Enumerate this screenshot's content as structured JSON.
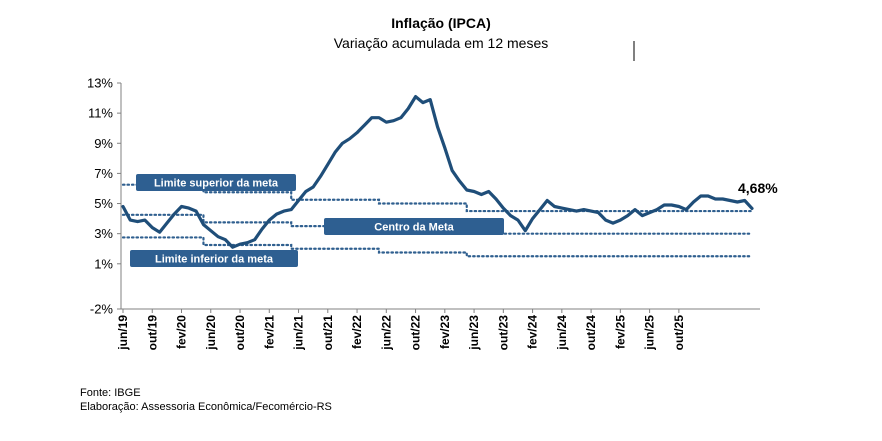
{
  "colors": {
    "main_line": "#1f4e79",
    "ref_line": "#2f5f8f",
    "label_box": "#2e5f91"
  },
  "chart_data": {
    "type": "line",
    "title": "Inflação (IPCA)",
    "subtitle": "Variação acumulada em 12 meses",
    "ylim": [
      -2,
      13
    ],
    "yticks": [
      "-2%",
      "1%",
      "3%",
      "5%",
      "7%",
      "9%",
      "11%",
      "13%"
    ],
    "ytick_values": [
      -2,
      1,
      3,
      5,
      7,
      9,
      11,
      13
    ],
    "xticks": [
      "jun/19",
      "out/19",
      "fev/20",
      "jun/20",
      "out/20",
      "fev/21",
      "jun/21",
      "out/21",
      "fev/22",
      "jun/22",
      "out/22",
      "fev/23",
      "jun/23",
      "out/23",
      "fev/24",
      "jun/24",
      "out/24",
      "fev/25",
      "jun/25",
      "out/25"
    ],
    "grid": false,
    "series": [
      {
        "values": [
          4.8,
          3.9,
          3.8,
          3.9,
          3.4,
          3.1,
          3.7,
          4.3,
          4.8,
          4.7,
          4.5,
          3.6,
          3.2,
          2.8,
          2.6,
          2.1,
          2.3,
          2.4,
          2.6,
          3.3,
          3.9,
          4.3,
          4.5,
          4.6,
          5.2,
          5.8,
          6.1,
          6.8,
          7.6,
          8.4,
          9.0,
          9.3,
          9.7,
          10.2,
          10.7,
          10.7,
          10.4,
          10.5,
          10.7,
          11.3,
          12.1,
          11.7,
          11.9,
          10.1,
          8.7,
          7.2,
          6.5,
          5.9,
          5.8,
          5.6,
          5.8,
          5.3,
          4.7,
          4.2,
          3.9,
          3.2,
          4.0,
          4.6,
          5.2,
          4.8,
          4.7,
          4.6,
          4.5,
          4.6,
          4.5,
          4.4,
          3.9,
          3.7,
          3.9,
          4.2,
          4.6,
          4.2,
          4.4,
          4.6,
          4.9,
          4.9,
          4.8,
          4.6,
          5.1,
          5.5,
          5.5,
          5.3,
          5.3,
          5.2,
          5.1,
          5.2,
          4.68
        ]
      }
    ],
    "targets": [
      {
        "name": "Limite superior da meta",
        "segments": [
          [
            0,
            11,
            6.25
          ],
          [
            11,
            23,
            5.75
          ],
          [
            23,
            35,
            5.25
          ],
          [
            35,
            47,
            5.0
          ],
          [
            47,
            89,
            4.5
          ]
        ]
      },
      {
        "name": "Centro da Meta",
        "segments": [
          [
            0,
            11,
            4.25
          ],
          [
            11,
            23,
            3.75
          ],
          [
            23,
            35,
            3.5
          ],
          [
            35,
            47,
            3.25
          ],
          [
            47,
            89,
            3.0
          ]
        ]
      },
      {
        "name": "Limite inferior da meta",
        "segments": [
          [
            0,
            11,
            2.75
          ],
          [
            11,
            23,
            2.25
          ],
          [
            23,
            35,
            2.0
          ],
          [
            35,
            47,
            1.75
          ],
          [
            47,
            89,
            1.5
          ]
        ]
      }
    ],
    "end_label": "4,68%"
  },
  "footer": {
    "source": "Fonte: IBGE",
    "elaboration": "Elaboração: Assessoria Econômica/Fecomércio-RS"
  }
}
